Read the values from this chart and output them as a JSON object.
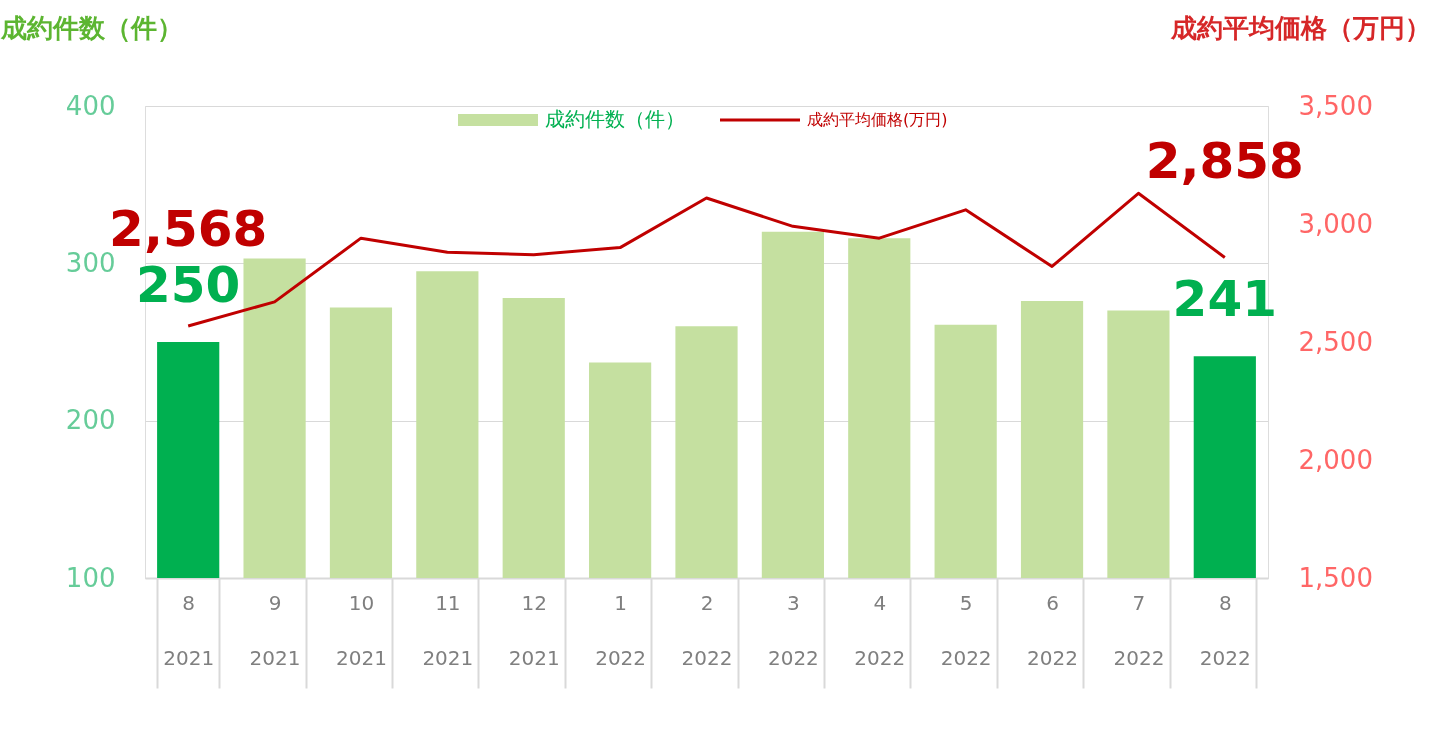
{
  "chart_data": {
    "type": "bar",
    "ylabel": "成約件数（件）",
    "y2label": "成約平均価格（万円）",
    "categories": [
      "8\n2021",
      "9\n2021",
      "10\n2021",
      "11\n2021",
      "12\n2021",
      "1\n2022",
      "2\n2022",
      "3\n2022",
      "4\n2022",
      "5\n2022",
      "6\n2022",
      "7\n2022",
      "8\n2022"
    ],
    "series": [
      {
        "name": "成約件数（件）",
        "color": "#c5e0a0",
        "colors": [
          "#00b050",
          "#c5e0a0",
          "#c5e0a0",
          "#c5e0a0",
          "#c5e0a0",
          "#c5e0a0",
          "#c5e0a0",
          "#c5e0a0",
          "#c5e0a0",
          "#c5e0a0",
          "#c5e0a0",
          "#c5e0a0",
          "#00b050"
        ],
        "values": [
          250,
          303,
          272,
          295,
          278,
          237,
          260,
          320,
          316,
          261,
          276,
          270,
          241
        ],
        "value_labels": [
          "250",
          null,
          null,
          null,
          null,
          null,
          null,
          null,
          null,
          null,
          null,
          null,
          "241"
        ]
      },
      {
        "name": "成約平均価格(万円)",
        "type": "line",
        "axis": "y2",
        "color": "#c00000",
        "values": [
          2568,
          2670,
          2940,
          2880,
          2870,
          2900,
          3110,
          2990,
          2940,
          3060,
          2820,
          3130,
          2858
        ],
        "value_labels": [
          "2,568",
          null,
          null,
          null,
          null,
          null,
          null,
          null,
          null,
          null,
          null,
          null,
          "2,858"
        ]
      }
    ],
    "ylim": [
      100,
      400
    ],
    "yticks": [
      100,
      200,
      300,
      400
    ],
    "y2lim": [
      1500,
      3500
    ],
    "y2ticks": [
      {
        "value": 1500,
        "label": "1,500"
      },
      {
        "value": 2000,
        "label": "2,000"
      },
      {
        "value": 2500,
        "label": "2,500"
      },
      {
        "value": 3000,
        "label": "3,000"
      },
      {
        "value": 3500,
        "label": "3,500"
      }
    ],
    "grid": "y",
    "legend": "top",
    "line_style": "solid",
    "marker": "none"
  }
}
